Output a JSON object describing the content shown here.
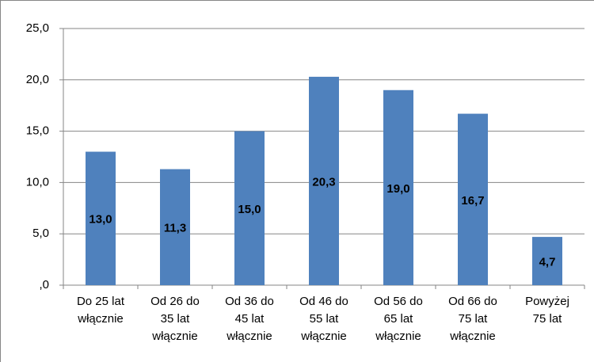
{
  "chart_data": {
    "type": "bar",
    "categories": [
      "Do 25 lat włącznie",
      "Od 26 do 35 lat włącznie",
      "Od 36 do 45 lat włącznie",
      "Od 46 do 55 lat włącznie",
      "Od 56 do 65 lat włącznie",
      "Od 66 do 75 lat włącznie",
      "Powyżej 75 lat"
    ],
    "values": [
      13.0,
      11.3,
      15.0,
      20.3,
      19.0,
      16.7,
      4.7
    ],
    "value_labels": [
      "13,0",
      "11,3",
      "15,0",
      "20,3",
      "19,0",
      "16,7",
      "4,7"
    ],
    "color": "#4f81bd",
    "ylim": [
      0,
      25
    ],
    "yticks": [
      {
        "value": 0,
        "label": ",0"
      },
      {
        "value": 5,
        "label": "5,0"
      },
      {
        "value": 10,
        "label": "10,0"
      },
      {
        "value": 15,
        "label": "15,0"
      },
      {
        "value": 20,
        "label": "20,0"
      },
      {
        "value": 25,
        "label": "25,0"
      }
    ],
    "grid": true
  }
}
